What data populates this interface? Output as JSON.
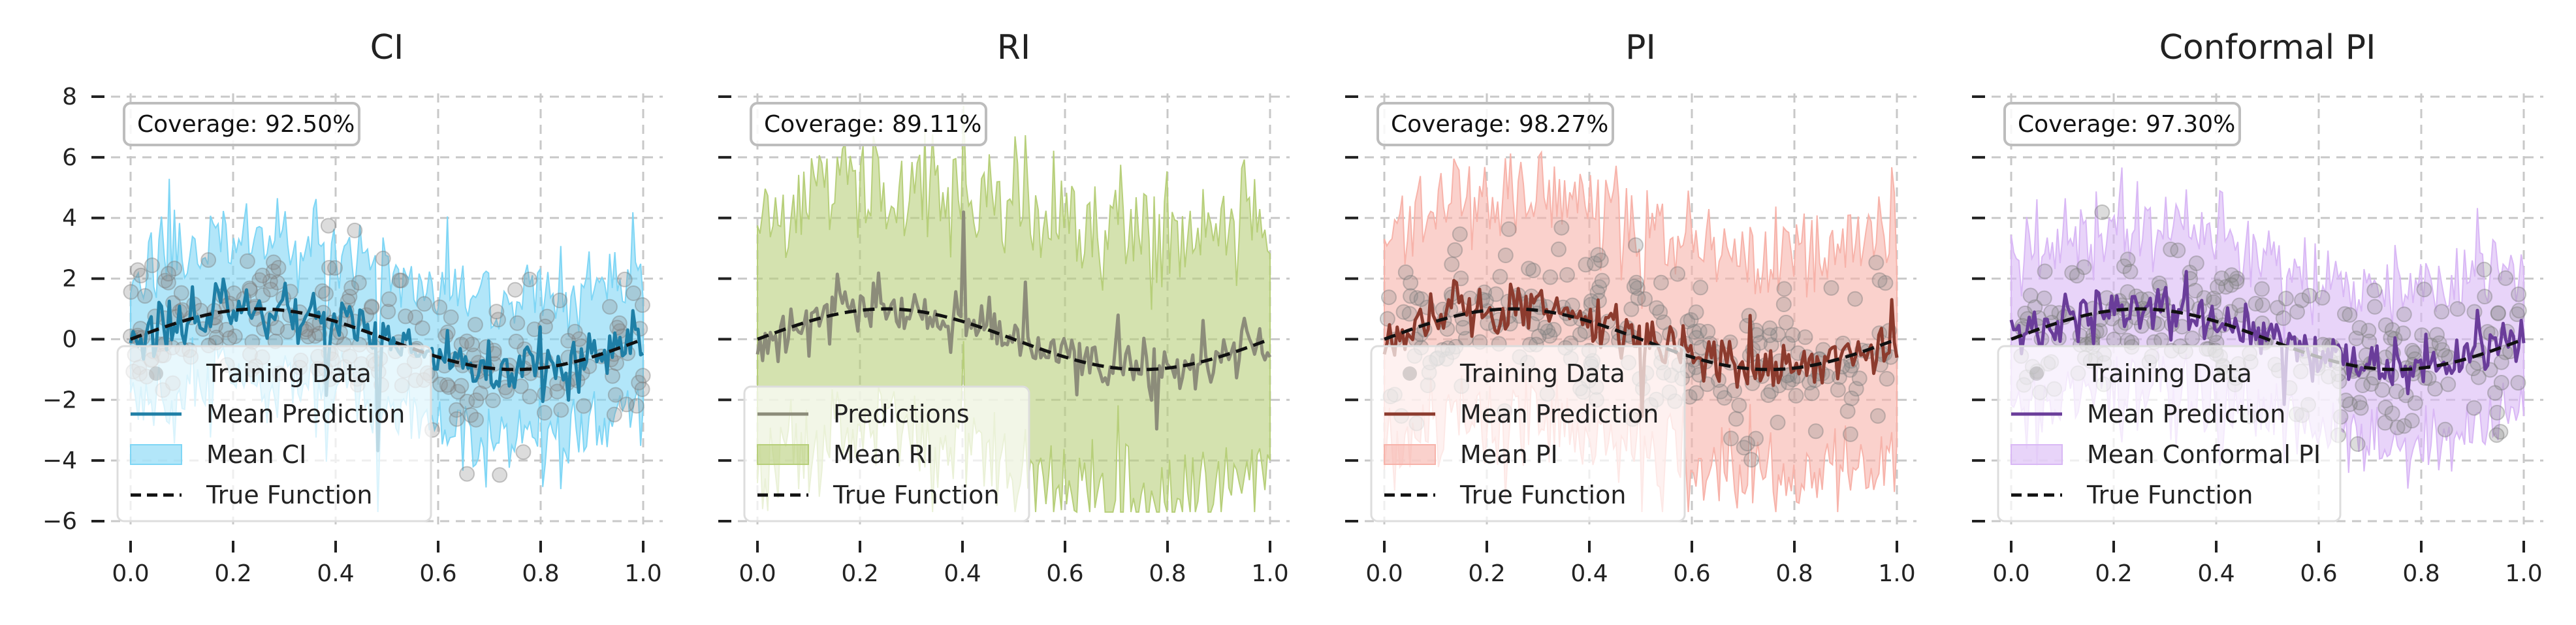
{
  "chart_data": [
    {
      "type": "line",
      "title": "CI",
      "coverage_label": "Coverage: 92.50%",
      "mean_label": "Mean Prediction",
      "band_label": "Mean CI",
      "train_label": "Training Data",
      "true_label": "True Function",
      "color": "#1f7fa6",
      "band_color": "#7fd6f5",
      "band_half_width": 2.2,
      "xlim": [
        0,
        1
      ],
      "ylim": [
        -6,
        8
      ],
      "xticks": [
        "0.0",
        "0.2",
        "0.4",
        "0.6",
        "0.8",
        "1.0"
      ],
      "yticks": [
        "−6",
        "−4",
        "−2",
        "0",
        "2",
        "4",
        "6",
        "8"
      ],
      "seed": 11
    },
    {
      "type": "line",
      "title": "RI",
      "coverage_label": "Coverage: 89.11%",
      "mean_label": "Predictions",
      "band_label": "Mean RI",
      "train_label": "",
      "true_label": "True Function",
      "color": "#8c8c7a",
      "band_color": "#b7cf7a",
      "band_half_width": 4.2,
      "xlim": [
        0,
        1
      ],
      "ylim": [
        -6,
        8
      ],
      "xticks": [
        "0.0",
        "0.2",
        "0.4",
        "0.6",
        "0.8",
        "1.0"
      ],
      "yticks": [],
      "seed": 23
    },
    {
      "type": "line",
      "title": "PI",
      "coverage_label": "Coverage: 98.27%",
      "mean_label": "Mean Prediction",
      "band_label": "Mean PI",
      "train_label": "Training Data",
      "true_label": "True Function",
      "color": "#8c3b2e",
      "band_color": "#f7b3aa",
      "band_half_width": 3.6,
      "xlim": [
        0,
        1
      ],
      "ylim": [
        -6,
        8
      ],
      "xticks": [
        "0.0",
        "0.2",
        "0.4",
        "0.6",
        "0.8",
        "1.0"
      ],
      "yticks": [],
      "seed": 37
    },
    {
      "type": "line",
      "title": "Conformal PI",
      "coverage_label": "Coverage: 97.30%",
      "mean_label": "Mean Prediction",
      "band_label": "Mean Conformal PI",
      "train_label": "Training Data",
      "true_label": "True Function",
      "color": "#6a3d9a",
      "band_color": "#d9b8f5",
      "band_half_width": 2.6,
      "xlim": [
        0,
        1
      ],
      "ylim": [
        -6,
        8
      ],
      "xticks": [
        "0.0",
        "0.2",
        "0.4",
        "0.6",
        "0.8",
        "1.0"
      ],
      "yticks": [],
      "seed": 53
    }
  ]
}
